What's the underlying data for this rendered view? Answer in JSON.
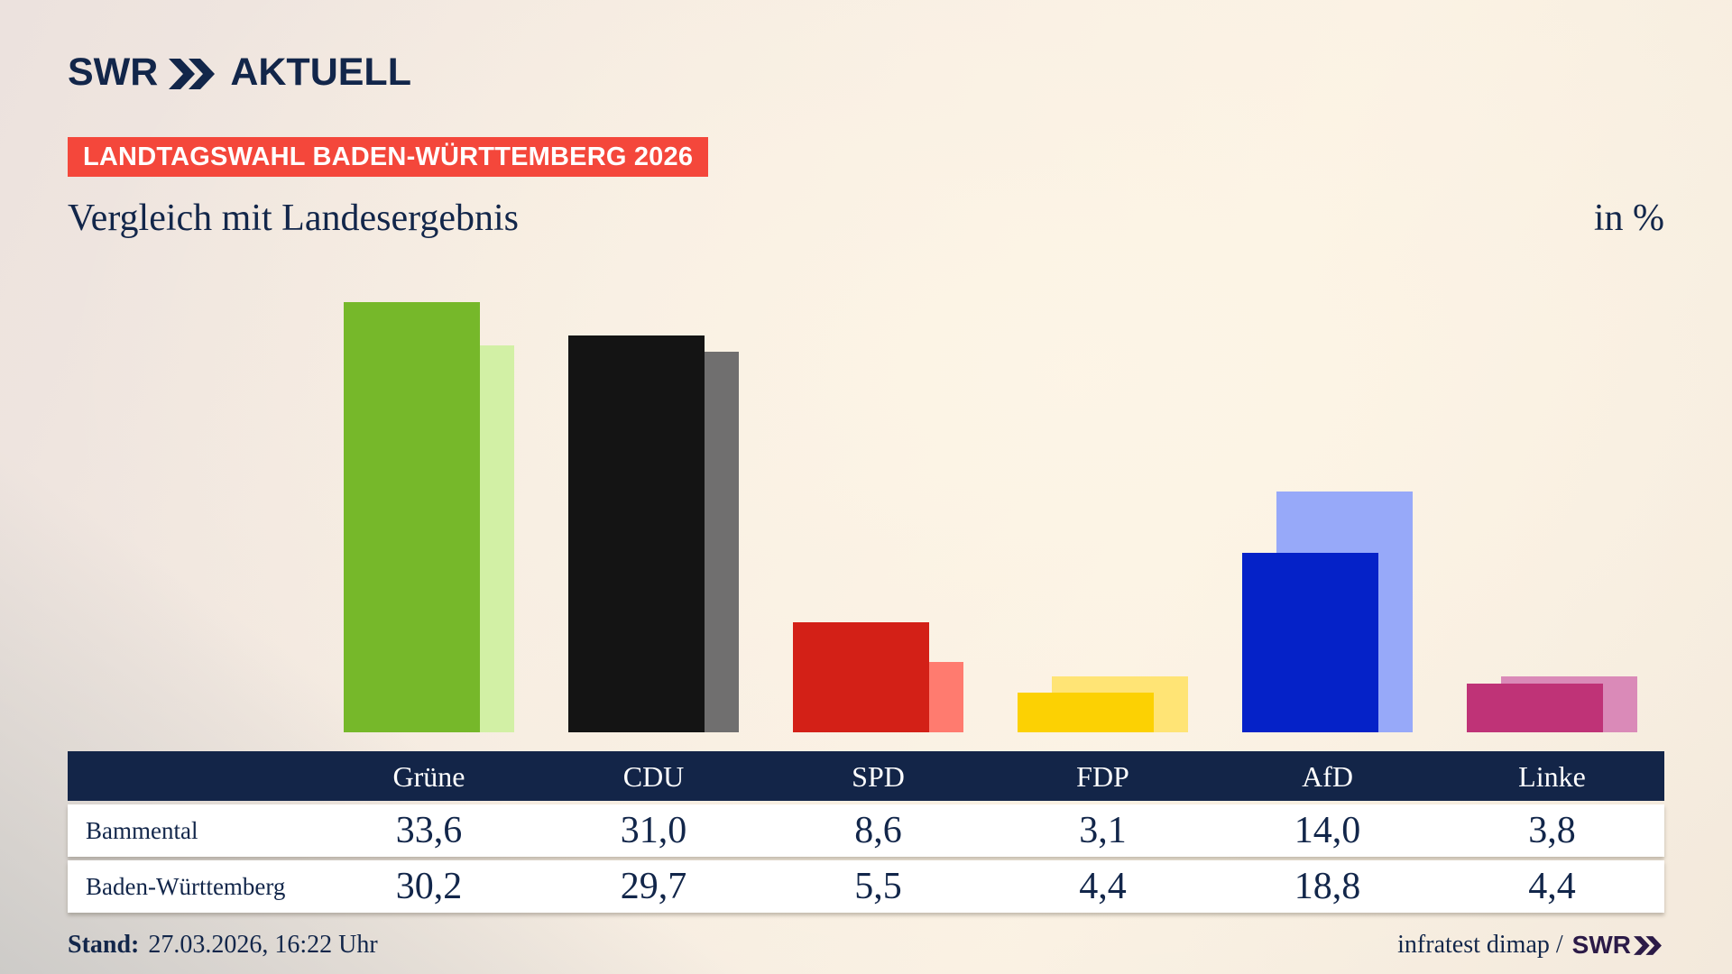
{
  "header": {
    "logo_swr": "SWR",
    "logo_aktuell": "AKTUELL",
    "badge": "LANDTAGSWAHL BADEN-WÜRTTEMBERG 2026",
    "title": "Vergleich mit Landesergebnis",
    "unit": "in %"
  },
  "chart_data": {
    "type": "bar",
    "categories": [
      "Grüne",
      "CDU",
      "SPD",
      "FDP",
      "AfD",
      "Linke"
    ],
    "series": [
      {
        "name": "Bammental",
        "values": [
          33.6,
          31.0,
          8.6,
          3.1,
          14.0,
          3.8
        ]
      },
      {
        "name": "Baden-Württemberg",
        "values": [
          30.2,
          29.7,
          5.5,
          4.4,
          18.8,
          4.4
        ]
      }
    ],
    "title": "Vergleich mit Landesergebnis",
    "xlabel": "",
    "ylabel": "in %",
    "ylim": [
      0,
      35
    ],
    "grid": false,
    "legend_position": "none",
    "colors": {
      "local": [
        "#76b82a",
        "#141414",
        "#d32017",
        "#fcd103",
        "#0522c8",
        "#bf3377"
      ],
      "state": [
        "#d2f0a5",
        "#706f6f",
        "#ff7b6f",
        "#ffe475",
        "#97a9f9",
        "#da8ab8"
      ]
    }
  },
  "table": {
    "columns": [
      "",
      "Grüne",
      "CDU",
      "SPD",
      "FDP",
      "AfD",
      "Linke"
    ],
    "rows": [
      {
        "label": "Bammental",
        "values": [
          "33,6",
          "31,0",
          "8,6",
          "3,1",
          "14,0",
          "3,8"
        ]
      },
      {
        "label": "Baden-Württemberg",
        "values": [
          "30,2",
          "29,7",
          "5,5",
          "4,4",
          "18,8",
          "4,4"
        ]
      }
    ]
  },
  "footer": {
    "stand_label": "Stand:",
    "stand_value": "27.03.2026, 16:22 Uhr",
    "source": "infratest dimap /",
    "source_brand": "SWR"
  },
  "colors": {
    "navy": "#12264a",
    "badge_red": "#f4473b",
    "header_band": "#132548",
    "brand_purple": "#2b1a47"
  }
}
